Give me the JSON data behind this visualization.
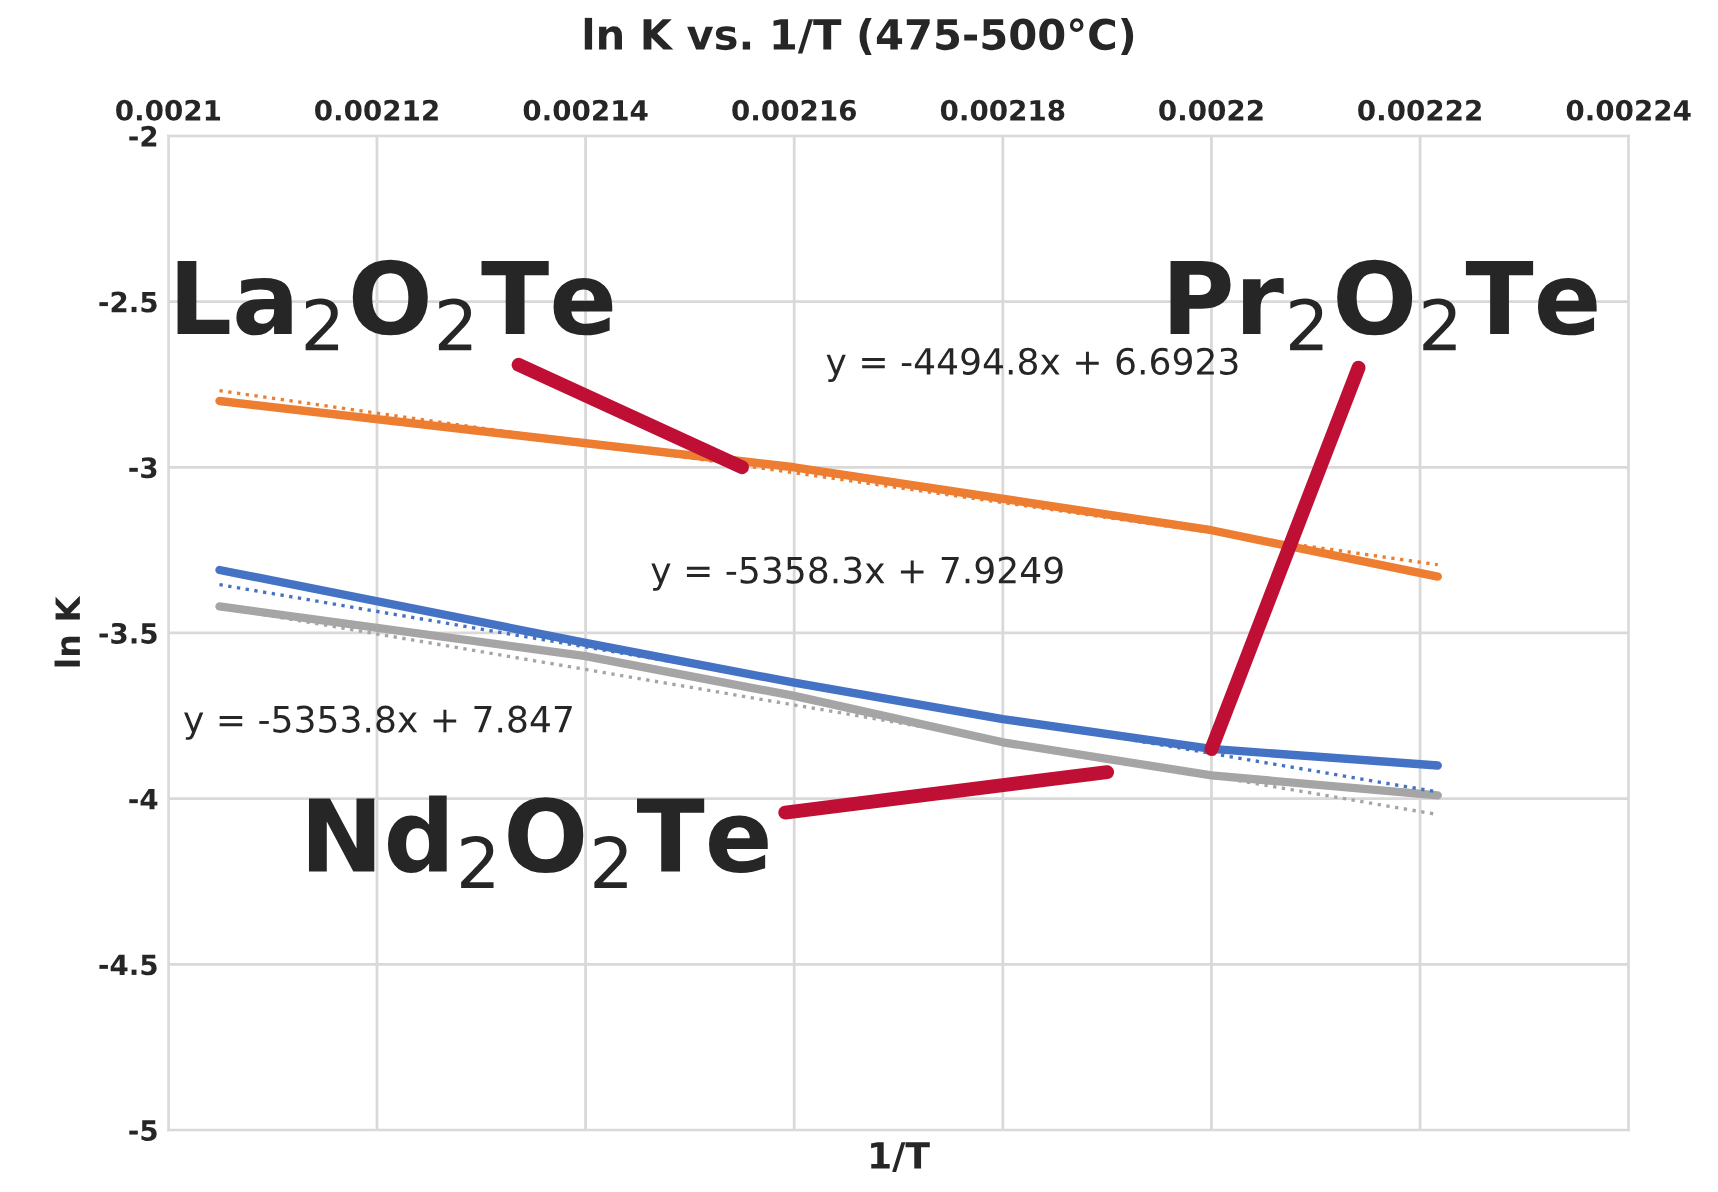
{
  "chart_data": {
    "type": "line",
    "title": "ln K vs. 1/T (475-500°C)",
    "xlabel": "1/T",
    "ylabel": "ln K",
    "xlim": [
      0.0021,
      0.00224
    ],
    "xticks": [
      0.0021,
      0.00212,
      0.00214,
      0.00216,
      0.00218,
      0.0022,
      0.00222,
      0.00224
    ],
    "ylim": [
      -5,
      -2
    ],
    "yticks": [
      -5,
      -4.5,
      -4,
      -3.5,
      -3,
      -2.5,
      -2
    ],
    "grid": true,
    "marker": "none",
    "series": [
      {
        "color": "#ed7d31",
        "line_style": "solid",
        "x": [
          0.0021049,
          0.00216,
          0.0022,
          0.0022217
        ],
        "values": [
          -2.8,
          -3.0,
          -3.19,
          -3.33
        ]
      },
      {
        "color": "#4472c4",
        "line_style": "solid",
        "x": [
          0.0021049,
          0.00214,
          0.00216,
          0.00218,
          0.0022,
          0.0022217
        ],
        "values": [
          -3.31,
          -3.53,
          -3.65,
          -3.76,
          -3.85,
          -3.9
        ]
      },
      {
        "color": "#a5a5a5",
        "line_style": "solid",
        "x": [
          0.0021049,
          0.00214,
          0.00216,
          0.00218,
          0.0022,
          0.0022217
        ],
        "values": [
          -3.42,
          -3.57,
          -3.69,
          -3.83,
          -3.93,
          -3.99
        ]
      },
      {
        "color": "#ed7d31",
        "line_style": "dotted",
        "x": [
          0.0021049,
          0.0022217
        ],
        "values": [
          -2.769,
          -3.294
        ]
      },
      {
        "color": "#4472c4",
        "line_style": "dotted",
        "x": [
          0.0021049,
          0.0022217
        ],
        "values": [
          -3.354,
          -3.98
        ]
      },
      {
        "color": "#a5a5a5",
        "line_style": "dotted",
        "x": [
          0.0021049,
          0.0022217
        ],
        "values": [
          -3.422,
          -4.048
        ]
      }
    ],
    "annotations": [
      "y = -4494.8x + 6.6923",
      "y = -5358.3x + 7.9249",
      "y = -5353.8x + 7.847",
      {
        "text": "La$_{2}$O$_{2}$Te",
        "x": 0.002155,
        "y": -3.0
      },
      {
        "text": "Pr$_{2}$O$_{2}$Te",
        "x": 0.0022,
        "y": -3.85
      },
      {
        "text": "Nd$_{2}$O$_{2}$Te",
        "x": 0.00219,
        "y": -3.92
      }
    ]
  }
}
